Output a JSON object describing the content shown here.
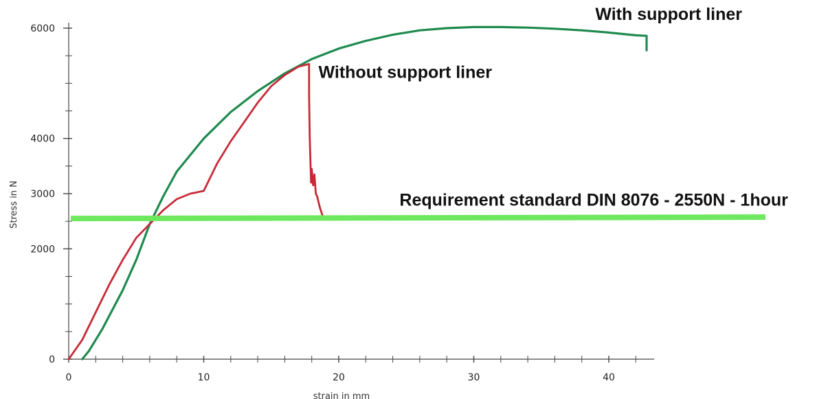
{
  "chart_data": {
    "type": "line",
    "xlabel": "strain in mm",
    "ylabel": "Stress in N",
    "xlim": [
      0,
      43
    ],
    "ylim": [
      0,
      6200
    ],
    "x_ticks": [
      0,
      10,
      20,
      30,
      40
    ],
    "x_tick_labels": [
      "0",
      "10",
      "20",
      "30",
      "40"
    ],
    "y_ticks": [
      0,
      2000,
      3000,
      4000,
      6000
    ],
    "y_tick_labels": [
      "0",
      "2000",
      "3000",
      "4000",
      "6000"
    ],
    "x_minor_step": 2,
    "y_minor_step": 500,
    "grid": false,
    "series": [
      {
        "name": "With support liner",
        "color": "#1e8a4e",
        "x": [
          1.0,
          1.5,
          2.5,
          4,
          5,
          6,
          7,
          8,
          10,
          12,
          14,
          16,
          18,
          20,
          22,
          24,
          26,
          28,
          30,
          32,
          34,
          36,
          38,
          40,
          42,
          42.8,
          42.8
        ],
        "y": [
          0,
          150,
          550,
          1250,
          1800,
          2450,
          2950,
          3400,
          4000,
          4480,
          4860,
          5180,
          5440,
          5630,
          5770,
          5880,
          5960,
          6000,
          6020,
          6020,
          6010,
          5990,
          5960,
          5920,
          5870,
          5860,
          5600
        ]
      },
      {
        "name": "Without support liner",
        "color": "#c62a37",
        "x": [
          0,
          1,
          2,
          3,
          4,
          5,
          6,
          7,
          8,
          9,
          10,
          11,
          12,
          13,
          14,
          15,
          16,
          17,
          17.8,
          17.8,
          17.85,
          17.95,
          18.0,
          18.1,
          18.2,
          18.3,
          18.4,
          18.5,
          18.6,
          18.8
        ],
        "y": [
          0,
          350,
          850,
          1350,
          1800,
          2200,
          2450,
          2700,
          2900,
          3000,
          3050,
          3550,
          3950,
          4300,
          4650,
          4950,
          5150,
          5300,
          5350,
          4800,
          4000,
          3200,
          3450,
          3150,
          3350,
          3000,
          2950,
          2850,
          2750,
          2600
        ]
      }
    ],
    "reference_line": {
      "label": "Requirement standard DIN 8076 - 2550N - 1hour",
      "y": 2550,
      "x_start": 0,
      "x_end": 51.6,
      "color": "#6ee85e"
    },
    "annotations": [
      {
        "text": "With support liner",
        "x": 39,
        "y": 6150
      },
      {
        "text": "Without support liner",
        "x": 18.5,
        "y": 5100
      },
      {
        "text": "Requirement standard DIN 8076 - 2550N - 1hour",
        "x": 24.5,
        "y": 2780
      }
    ],
    "axis_color": "#444444"
  }
}
